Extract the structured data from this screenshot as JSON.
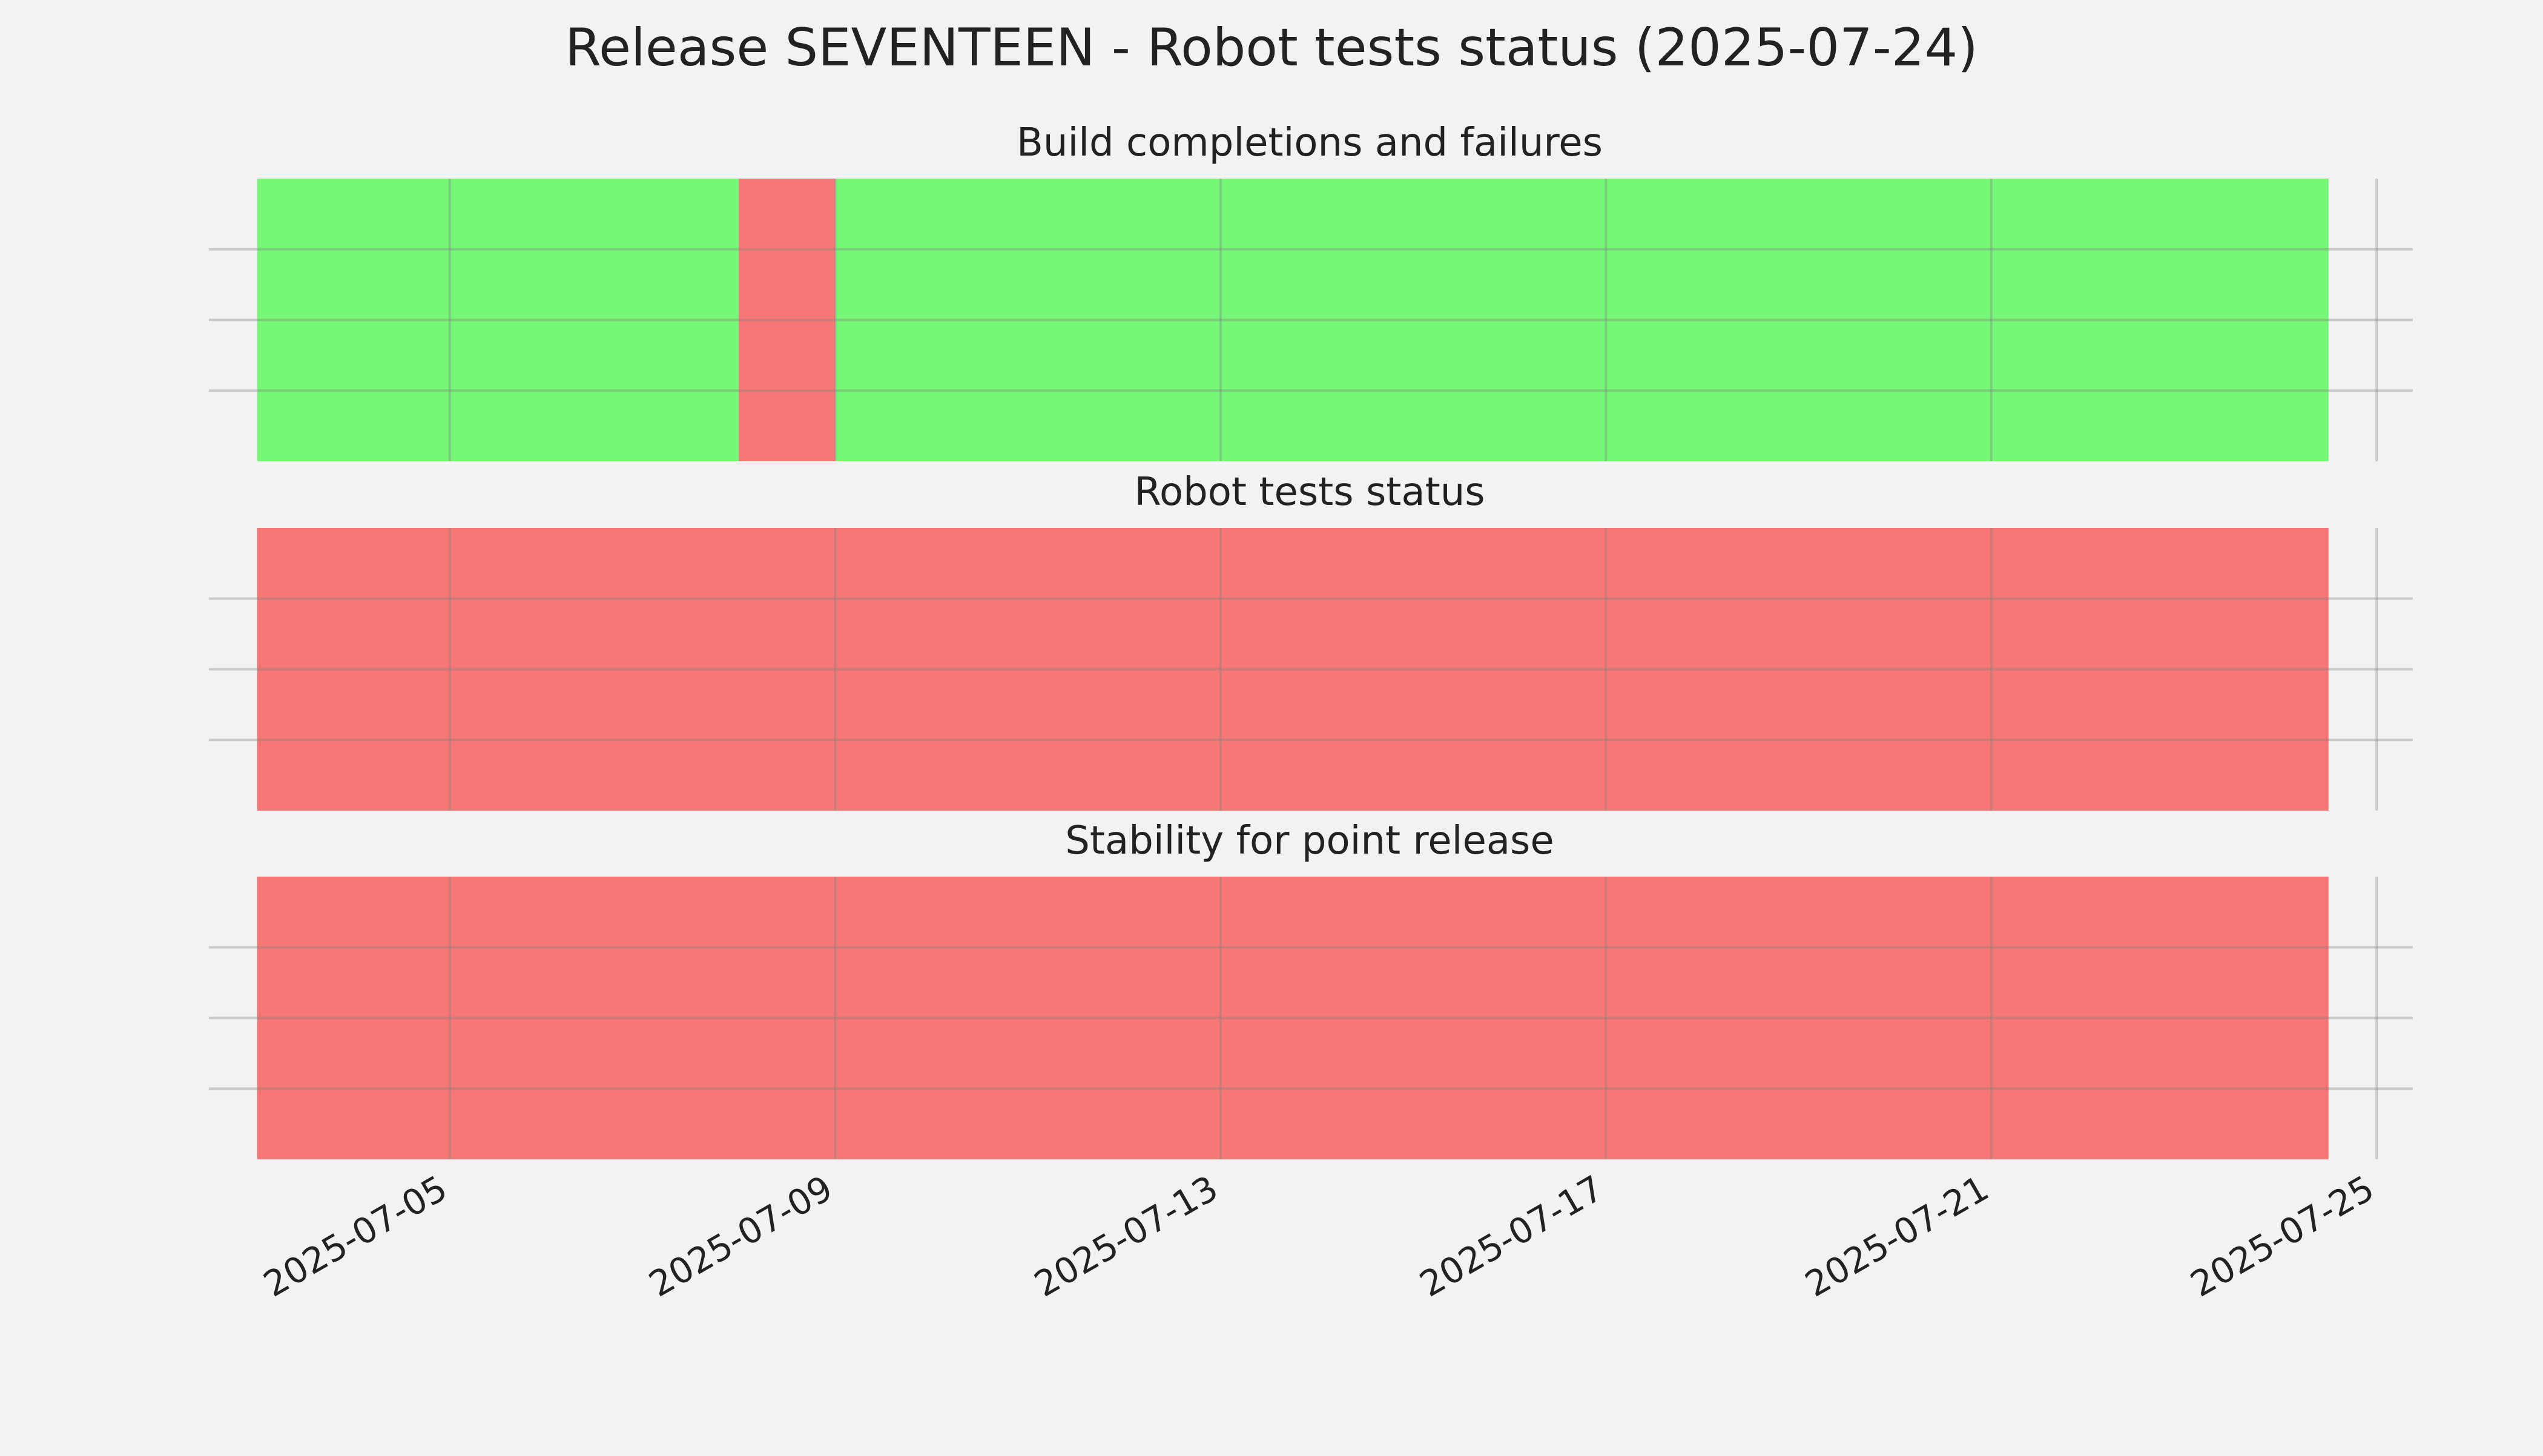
{
  "chart_data": {
    "type": "timeline",
    "title": "Release SEVENTEEN - Robot tests status (2025-07-24)",
    "x_axis": {
      "type": "date",
      "range": [
        "2025-07-02T12:00",
        "2025-07-25T09:00"
      ],
      "ticks": [
        "2025-07-05",
        "2025-07-09",
        "2025-07-13",
        "2025-07-17",
        "2025-07-21",
        "2025-07-25"
      ]
    },
    "y_axis": {
      "tick_labels_shown": false,
      "horizontal_gridlines_per_panel": 3
    },
    "grid": true,
    "status_colors": {
      "pass": "#76f777",
      "fail": "#f77776"
    },
    "panels": [
      {
        "title": "Build completions and failures",
        "segments": [
          {
            "start": "2025-07-03T00:00",
            "end": "2025-07-08T00:00",
            "status": "pass"
          },
          {
            "start": "2025-07-08T00:00",
            "end": "2025-07-09T00:00",
            "status": "fail"
          },
          {
            "start": "2025-07-09T00:00",
            "end": "2025-07-24T12:00",
            "status": "pass"
          }
        ]
      },
      {
        "title": "Robot tests status",
        "segments": [
          {
            "start": "2025-07-03T00:00",
            "end": "2025-07-24T12:00",
            "status": "fail"
          }
        ]
      },
      {
        "title": "Stability for point release",
        "segments": [
          {
            "start": "2025-07-03T00:00",
            "end": "2025-07-24T12:00",
            "status": "fail"
          }
        ]
      }
    ]
  }
}
